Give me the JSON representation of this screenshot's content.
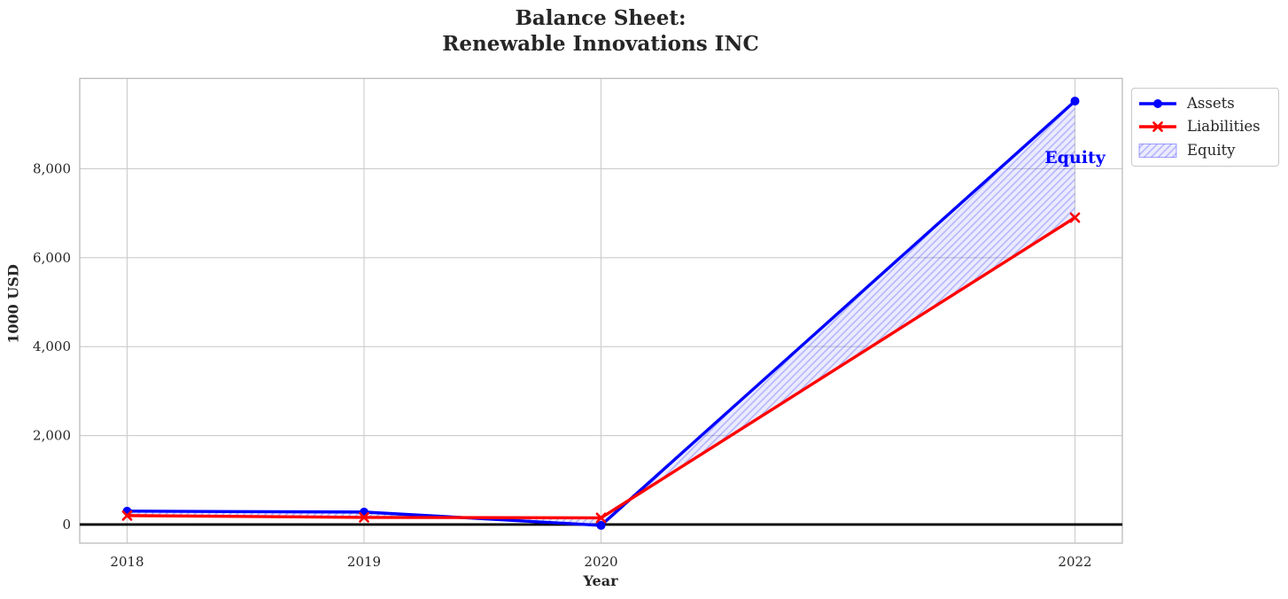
{
  "chart_data": {
    "type": "line",
    "title": "Balance Sheet:\nRenewable Innovations INC",
    "xlabel": "Year",
    "ylabel": "1000 USD",
    "x": [
      2018,
      2019,
      2020,
      2022
    ],
    "series": [
      {
        "name": "Assets",
        "color": "#0000ff",
        "marker": "circle",
        "values": [
          300,
          280,
          -20,
          9520
        ]
      },
      {
        "name": "Liabilities",
        "color": "#ff0000",
        "marker": "x",
        "values": [
          200,
          160,
          150,
          6900
        ]
      }
    ],
    "fill_between": {
      "label": "Equity",
      "between": [
        "Assets",
        "Liabilities"
      ],
      "fill_color": "#0000ff",
      "fill_opacity": 0.08,
      "hatch": "///",
      "hatch_color": "#0000ff",
      "hatch_opacity": 0.22
    },
    "annotation": {
      "text": "Equity",
      "x": 2022,
      "y": 8240,
      "color": "#0000ff"
    },
    "xticks": {
      "values": [
        2018,
        2019,
        2020,
        2022
      ],
      "labels": [
        "2018",
        "2019",
        "2020",
        "2022"
      ]
    },
    "yticks": {
      "values": [
        0,
        2000,
        4000,
        6000,
        8000
      ],
      "labels": [
        "0",
        "2,000",
        "4,000",
        "6,000",
        "8,000"
      ]
    },
    "xlim": [
      2017.8,
      2022.2
    ],
    "ylim": [
      -420,
      10030
    ],
    "grid": true,
    "grid_color": "#cccccc",
    "axes_border_color": "#bbbbbb",
    "zero_line": {
      "y": 0,
      "color": "#000000"
    },
    "legend": {
      "position": "outside-upper-right",
      "items": [
        {
          "label": "Assets",
          "type": "line",
          "marker": "circle",
          "color": "#0000ff"
        },
        {
          "label": "Liabilities",
          "type": "line",
          "marker": "x",
          "color": "#ff0000"
        },
        {
          "label": "Equity",
          "type": "patch",
          "color": "#0000ff"
        }
      ]
    }
  }
}
